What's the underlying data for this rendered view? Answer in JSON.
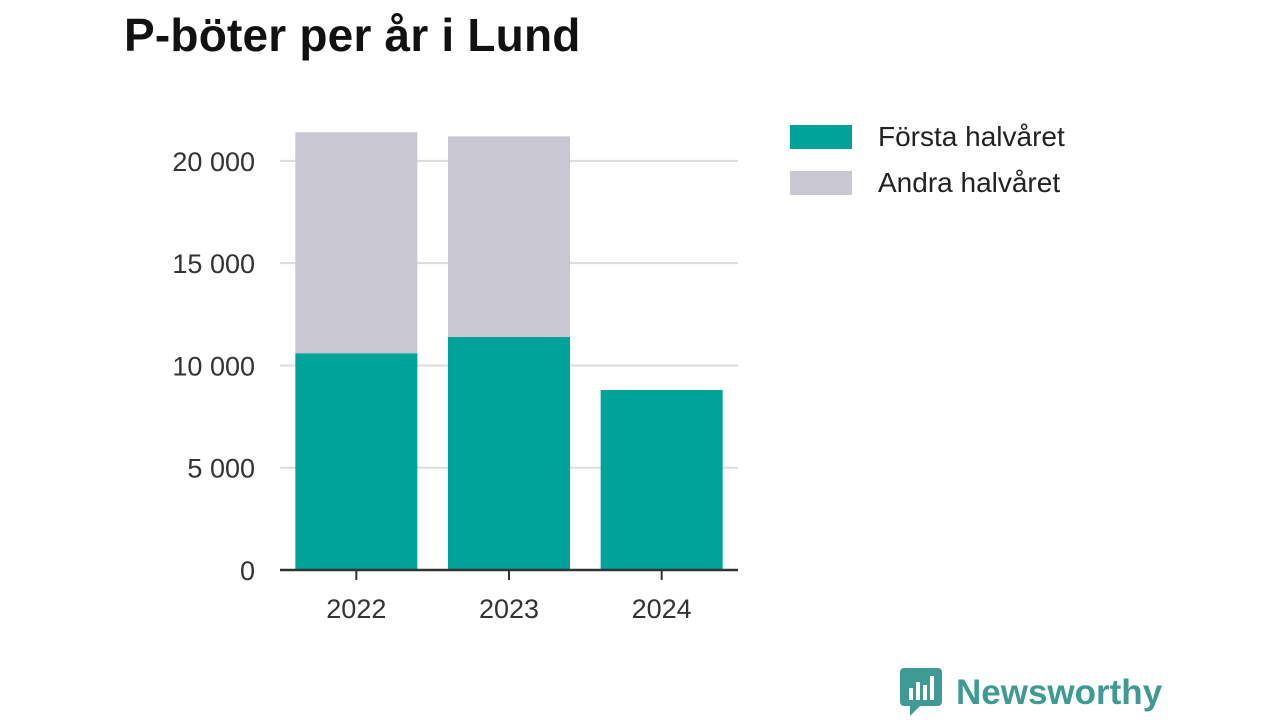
{
  "chart_data": {
    "type": "bar",
    "stacked": true,
    "title": "P-böter per år i Lund",
    "categories": [
      "2022",
      "2023",
      "2024"
    ],
    "series": [
      {
        "name": "Första halvåret",
        "color": "#00a39a",
        "values": [
          10600,
          11400,
          8800
        ]
      },
      {
        "name": "Andra halvåret",
        "color": "#c8c7d2",
        "values": [
          10800,
          9800,
          0
        ]
      }
    ],
    "ylim": [
      0,
      22000
    ],
    "yticks": [
      0,
      5000,
      10000,
      15000,
      20000
    ],
    "ytick_labels": [
      "0",
      "5 000",
      "10 000",
      "15 000",
      "20 000"
    ],
    "grid": true,
    "legend_position": "right-top",
    "xlabel": "",
    "ylabel": ""
  },
  "branding": {
    "logo_text": "Newsworthy",
    "logo_icon": "newsworthy-chart-icon",
    "logo_color": "#3f9a94"
  }
}
